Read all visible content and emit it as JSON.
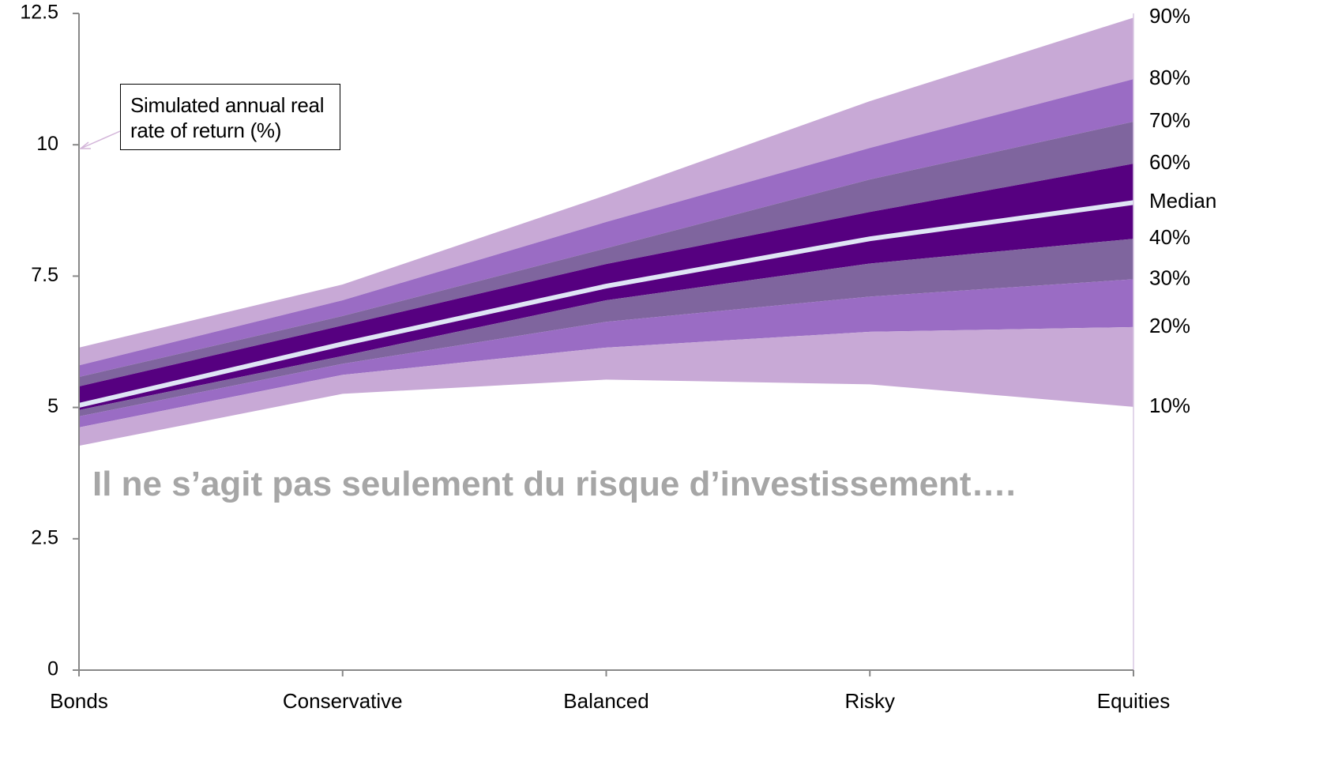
{
  "chart_data": {
    "type": "fan",
    "annotation": "Simulated annual real rate of return (%)",
    "watermark": "Il ne s’agit pas seulement du risque d’investissement….",
    "categories": [
      "Bonds",
      "Conservative",
      "Balanced",
      "Risky",
      "Equities"
    ],
    "series": [
      {
        "name": "90%",
        "color": "#c8a9d6",
        "values": [
          6.14,
          7.34,
          9.04,
          10.83,
          12.42
        ]
      },
      {
        "name": "80%",
        "color": "#9a6cc4",
        "values": [
          5.8,
          7.04,
          8.53,
          9.94,
          11.25
        ]
      },
      {
        "name": "70%",
        "color": "#7f659e",
        "values": [
          5.58,
          6.74,
          8.03,
          9.34,
          10.44
        ]
      },
      {
        "name": "60%",
        "color": "#560080",
        "values": [
          5.4,
          6.56,
          7.73,
          8.72,
          9.64
        ]
      },
      {
        "name": "Median",
        "color": "#dfe5f5",
        "values": [
          5.04,
          6.21,
          7.31,
          8.21,
          8.9
        ]
      },
      {
        "name": "40%",
        "color": "#560080",
        "values": [
          4.95,
          5.98,
          7.04,
          7.74,
          8.21
        ]
      },
      {
        "name": "30%",
        "color": "#7f659e",
        "values": [
          4.83,
          5.83,
          6.63,
          7.11,
          7.44
        ]
      },
      {
        "name": "20%",
        "color": "#9a6cc4",
        "values": [
          4.62,
          5.62,
          6.14,
          6.44,
          6.53
        ]
      },
      {
        "name": "10%",
        "color": "#c8a9d6",
        "values": [
          4.27,
          5.26,
          5.53,
          5.44,
          5.01
        ]
      }
    ],
    "ylim": [
      0,
      12.5
    ],
    "yticks": [
      0,
      2.5,
      5,
      7.5,
      10,
      12.5
    ]
  }
}
